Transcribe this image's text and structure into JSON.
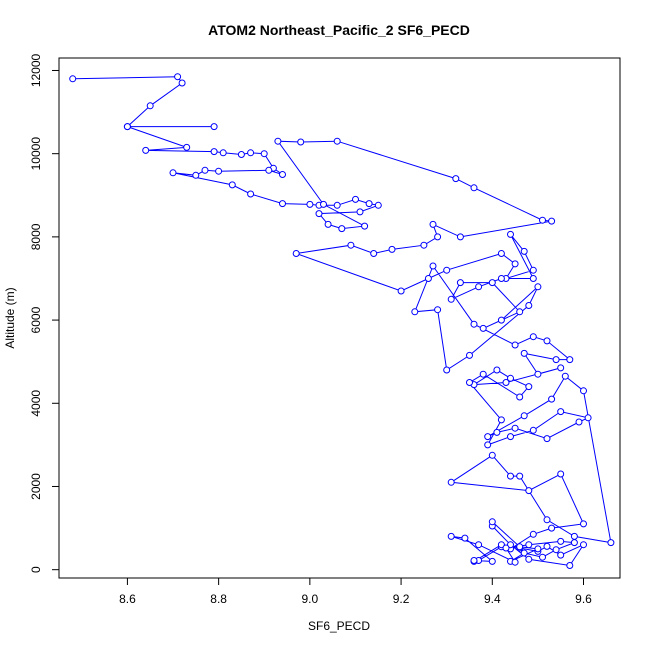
{
  "chart_data": {
    "type": "line",
    "title": "ATOM2 Northeast_Pacific_2 SF6_PECD",
    "xlabel": "SF6_PECD",
    "ylabel": "Altitude (m)",
    "xlim": [
      8.45,
      9.68
    ],
    "ylim": [
      -200,
      12300
    ],
    "xticks": [
      8.6,
      8.8,
      9.0,
      9.2,
      9.4,
      9.6
    ],
    "xtick_labels": [
      "8.6",
      "8.8",
      "9.0",
      "9.2",
      "9.4",
      "9.6"
    ],
    "yticks": [
      0,
      2000,
      4000,
      6000,
      8000,
      10000,
      12000
    ],
    "ytick_labels": [
      "0",
      "2000",
      "4000",
      "6000",
      "8000",
      "10000",
      "12000"
    ],
    "grid": false,
    "legend": "none",
    "series": [
      {
        "color": "#0000ff",
        "x": [
          8.48,
          8.71,
          8.72,
          8.65,
          8.6,
          8.79,
          8.6,
          8.73,
          8.64,
          8.79,
          8.81,
          8.85,
          8.87,
          8.9,
          8.92,
          8.94,
          8.91,
          8.8,
          8.77,
          8.75,
          8.7,
          8.83,
          8.87,
          8.94,
          9.0,
          9.02,
          9.06,
          9.1,
          9.13,
          9.15,
          9.11,
          9.02,
          9.04,
          9.07,
          9.12,
          9.03,
          8.93,
          8.98,
          9.06,
          9.32,
          9.36,
          9.51,
          9.53,
          9.33,
          9.27,
          9.28,
          9.25,
          9.18,
          9.14,
          9.09,
          8.97,
          9.2,
          9.26,
          9.3,
          9.42,
          9.45,
          9.43,
          9.49,
          9.47,
          9.44,
          9.49,
          9.42,
          9.37,
          9.31,
          9.33,
          9.4,
          9.46,
          9.38,
          9.42,
          9.5,
          9.48,
          9.35,
          9.3,
          9.28,
          9.23,
          9.27,
          9.36,
          9.45,
          9.49,
          9.52,
          9.57,
          9.54,
          9.47,
          9.5,
          9.55,
          9.43,
          9.36,
          9.41,
          9.44,
          9.48,
          9.46,
          9.38,
          9.35,
          9.42,
          9.39,
          9.44,
          9.49,
          9.55,
          9.61,
          9.59,
          9.52,
          9.45,
          9.41,
          9.39,
          9.47,
          9.53,
          9.56,
          9.6,
          9.66,
          9.58,
          9.52,
          9.46,
          9.44,
          9.4,
          9.31,
          9.48,
          9.55,
          9.6,
          9.53,
          9.49,
          9.44,
          9.42,
          9.37,
          9.36,
          9.42,
          9.46,
          9.5,
          9.52,
          9.55,
          9.6,
          9.57,
          9.48,
          9.44,
          9.4,
          9.4,
          9.46,
          9.5,
          9.44,
          9.47,
          9.51,
          9.54,
          9.58,
          9.55,
          9.48,
          9.43,
          9.45,
          9.37,
          9.31,
          9.34,
          9.4,
          9.36
        ],
        "y": [
          11800,
          11850,
          11700,
          11150,
          10650,
          10650,
          10650,
          10150,
          10080,
          10050,
          10020,
          9980,
          10020,
          10000,
          9650,
          9500,
          9600,
          9580,
          9600,
          9480,
          9540,
          9250,
          9030,
          8800,
          8780,
          8760,
          8760,
          8900,
          8800,
          8760,
          8600,
          8560,
          8300,
          8200,
          8260,
          8780,
          10300,
          10280,
          10300,
          9400,
          9180,
          8400,
          8380,
          8000,
          8300,
          8000,
          7800,
          7700,
          7600,
          7800,
          7600,
          6700,
          7000,
          7200,
          7600,
          7350,
          7000,
          7200,
          7650,
          8060,
          7000,
          7000,
          6800,
          6500,
          6900,
          6900,
          6200,
          5800,
          6000,
          6800,
          6350,
          5150,
          4800,
          6250,
          6200,
          7300,
          5900,
          5400,
          5600,
          5500,
          5050,
          5050,
          5200,
          4700,
          4850,
          4500,
          4450,
          4800,
          4600,
          4400,
          4150,
          4700,
          4500,
          3600,
          3000,
          3200,
          3350,
          3800,
          3650,
          3550,
          3150,
          3400,
          3300,
          3200,
          3700,
          4100,
          4650,
          4300,
          650,
          800,
          1200,
          2250,
          2250,
          2750,
          2100,
          1900,
          2300,
          1100,
          1000,
          850,
          500,
          550,
          220,
          200,
          600,
          520,
          440,
          560,
          350,
          600,
          100,
          250,
          600,
          1050,
          1150,
          550,
          500,
          200,
          400,
          300,
          480,
          650,
          680,
          600,
          520,
          180,
          600,
          800,
          760,
          200,
          220
        ]
      }
    ]
  }
}
